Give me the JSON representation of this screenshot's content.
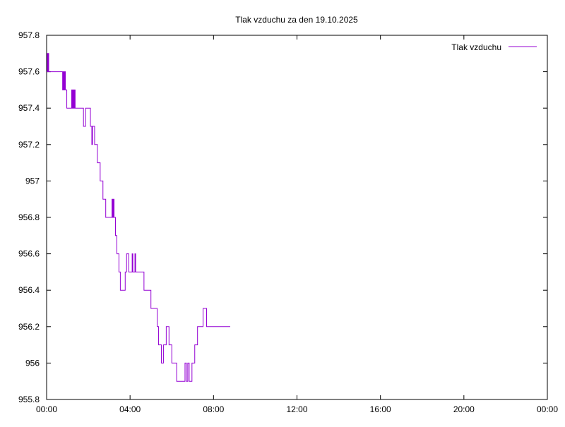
{
  "chart_data": {
    "type": "line",
    "title": "Tlak vzduchu za den 19.10.2025",
    "xlabel": "",
    "ylabel": "",
    "xlim": [
      "00:00",
      "24:00"
    ],
    "ylim": [
      955.8,
      957.8
    ],
    "x_ticks": [
      "00:00",
      "04:00",
      "08:00",
      "12:00",
      "16:00",
      "20:00",
      "00:00"
    ],
    "y_ticks": [
      "955.8",
      "956",
      "956.2",
      "956.4",
      "956.6",
      "956.8",
      "957",
      "957.2",
      "957.4",
      "957.6",
      "957.8"
    ],
    "grid": false,
    "legend_position": "top-right",
    "series": [
      {
        "name": "Tlak vzduchu",
        "color": "#9400d3",
        "step": true,
        "x": [
          "00:00",
          "00:02",
          "00:04",
          "00:05",
          "00:06",
          "00:08",
          "00:44",
          "00:46",
          "00:48",
          "00:50",
          "00:52",
          "00:54",
          "00:56",
          "00:58",
          "01:00",
          "01:08",
          "01:10",
          "01:12",
          "01:14",
          "01:16",
          "01:18",
          "01:20",
          "01:22",
          "01:24",
          "01:26",
          "01:28",
          "01:46",
          "01:48",
          "01:52",
          "01:54",
          "01:56",
          "01:58",
          "02:06",
          "02:08",
          "02:10",
          "02:12",
          "02:14",
          "02:18",
          "02:22",
          "02:26",
          "02:30",
          "02:34",
          "02:38",
          "02:42",
          "02:46",
          "02:50",
          "02:54",
          "02:58",
          "03:00",
          "03:04",
          "03:08",
          "03:10",
          "03:12",
          "03:14",
          "03:16",
          "03:18",
          "03:20",
          "03:22",
          "03:26",
          "03:28",
          "03:30",
          "03:32",
          "03:34",
          "03:36",
          "03:38",
          "03:40",
          "03:42",
          "03:44",
          "03:46",
          "03:48",
          "03:50",
          "03:54",
          "03:56",
          "04:00",
          "04:04",
          "04:06",
          "04:08",
          "04:12",
          "04:14",
          "04:16",
          "04:18",
          "04:20",
          "04:22",
          "04:24",
          "04:26",
          "04:28",
          "04:30",
          "04:32",
          "04:34",
          "04:36",
          "04:38",
          "04:40",
          "04:42",
          "04:44",
          "04:46",
          "04:48",
          "04:50",
          "04:52",
          "04:54",
          "04:56",
          "05:00",
          "05:04",
          "05:06",
          "05:10",
          "05:14",
          "05:18",
          "05:22",
          "05:26",
          "05:30",
          "05:32",
          "05:34",
          "05:36",
          "05:38",
          "05:40",
          "05:44",
          "05:48",
          "05:52",
          "05:56",
          "06:00",
          "06:04",
          "06:06",
          "06:08",
          "06:10",
          "06:14",
          "06:18",
          "06:20",
          "06:22",
          "06:24",
          "06:26",
          "06:30",
          "06:34",
          "06:38",
          "06:42",
          "06:46",
          "06:50",
          "06:54",
          "06:58",
          "07:02",
          "07:06",
          "07:10",
          "07:14",
          "07:18",
          "07:22",
          "07:24",
          "07:26",
          "07:28",
          "07:30",
          "07:32",
          "07:34",
          "07:36",
          "07:38",
          "07:40",
          "07:44",
          "07:48",
          "07:52",
          "07:56",
          "08:00",
          "08:04",
          "08:08",
          "08:12",
          "08:16",
          "08:20",
          "08:24",
          "08:28",
          "08:32",
          "08:36",
          "08:40",
          "08:44",
          "08:48"
        ],
        "values": [
          957.6,
          957.7,
          957.6,
          957.7,
          957.6,
          957.6,
          957.6,
          957.5,
          957.6,
          957.5,
          957.6,
          957.5,
          957.5,
          957.4,
          957.4,
          957.4,
          957.4,
          957.5,
          957.4,
          957.5,
          957.4,
          957.5,
          957.4,
          957.4,
          957.4,
          957.4,
          957.3,
          957.3,
          957.4,
          957.4,
          957.4,
          957.4,
          957.3,
          957.3,
          957.2,
          957.3,
          957.3,
          957.2,
          957.2,
          957.1,
          957.1,
          957.0,
          957.0,
          956.9,
          956.9,
          956.8,
          956.8,
          956.8,
          956.8,
          956.8,
          956.9,
          956.8,
          956.9,
          956.8,
          956.8,
          956.7,
          956.7,
          956.6,
          956.6,
          956.5,
          956.5,
          956.4,
          956.4,
          956.4,
          956.4,
          956.4,
          956.4,
          956.4,
          956.5,
          956.5,
          956.6,
          956.6,
          956.5,
          956.5,
          956.5,
          956.6,
          956.5,
          956.5,
          956.6,
          956.5,
          956.5,
          956.5,
          956.5,
          956.5,
          956.5,
          956.5,
          956.5,
          956.5,
          956.5,
          956.5,
          956.5,
          956.4,
          956.4,
          956.4,
          956.4,
          956.4,
          956.4,
          956.4,
          956.4,
          956.4,
          956.3,
          956.3,
          956.3,
          956.3,
          956.3,
          956.2,
          956.1,
          956.1,
          956.0,
          956.0,
          956.0,
          956.1,
          956.1,
          956.1,
          956.2,
          956.2,
          956.1,
          956.1,
          956.0,
          956.0,
          956.0,
          956.0,
          956.0,
          955.9,
          955.9,
          955.9,
          955.9,
          955.9,
          955.9,
          955.9,
          955.9,
          956.0,
          955.9,
          956.0,
          955.9,
          955.9,
          956.0,
          956.0,
          956.1,
          956.1,
          956.2,
          956.2,
          956.2,
          956.2,
          956.2,
          956.2,
          956.3,
          956.3,
          956.3,
          956.3,
          956.3,
          956.2,
          956.2,
          956.2,
          956.2,
          956.2,
          956.2,
          956.2,
          956.2,
          956.2,
          956.2,
          956.2,
          956.2,
          956.2,
          956.2,
          956.2,
          956.2,
          956.2,
          956.2
        ]
      }
    ]
  }
}
